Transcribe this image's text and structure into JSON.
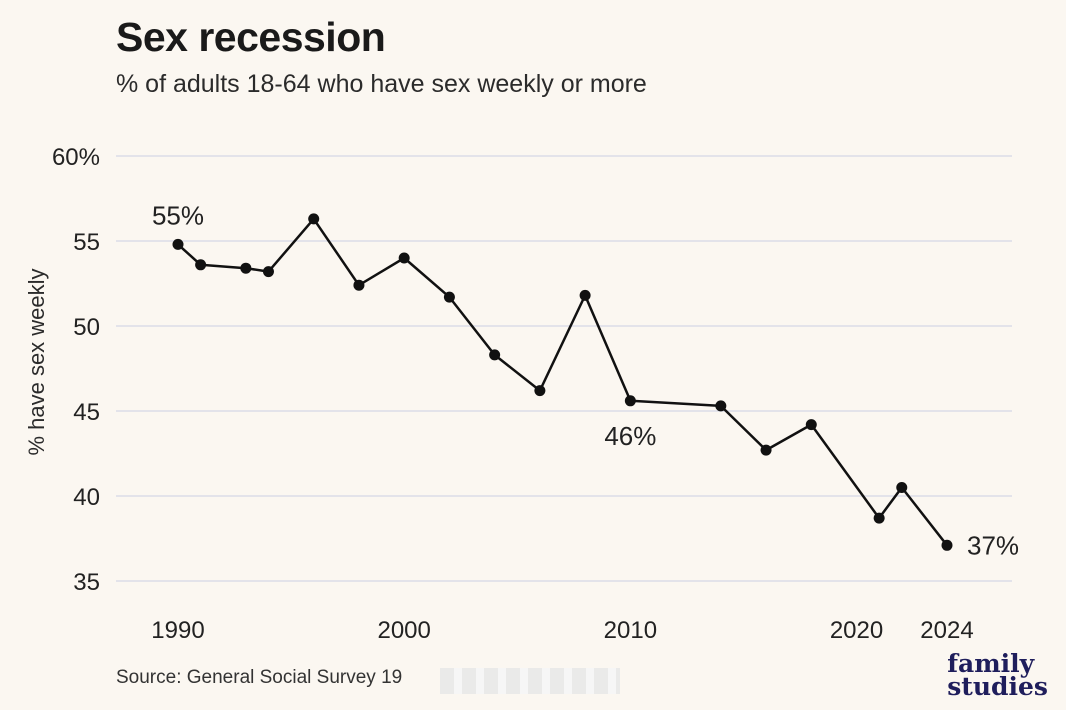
{
  "title": "Sex recession",
  "subtitle": "% of adults 18-64 who have sex weekly or more",
  "source": "Source: General Social Survey 19",
  "logo": {
    "line1": "family",
    "line2": "studies"
  },
  "colors": {
    "background": "#fbf7f1",
    "line": "#111111",
    "grid": "#e3e3ea",
    "logo": "#1f1e5c"
  },
  "chart_data": {
    "type": "line",
    "ylabel": "% have sex weekly",
    "xlabel": "",
    "ylim": [
      35,
      60
    ],
    "yticks": [
      {
        "value": 60,
        "label": "60%"
      },
      {
        "value": 55,
        "label": "55"
      },
      {
        "value": 50,
        "label": "50"
      },
      {
        "value": 45,
        "label": "45"
      },
      {
        "value": 40,
        "label": "40"
      },
      {
        "value": 35,
        "label": "35"
      }
    ],
    "xticks": [
      {
        "value": 1990,
        "label": "1990"
      },
      {
        "value": 2000,
        "label": "2000"
      },
      {
        "value": 2010,
        "label": "2010"
      },
      {
        "value": 2020,
        "label": "2020"
      },
      {
        "value": 2024,
        "label": "2024"
      }
    ],
    "grid": true,
    "series": [
      {
        "x": [
          1990,
          1991,
          1993,
          1994,
          1996,
          1998,
          2000,
          2002,
          2004,
          2006,
          2008,
          2010,
          2014,
          2016,
          2018,
          2021,
          2022,
          2024
        ],
        "y": [
          54.8,
          53.6,
          53.4,
          53.2,
          56.3,
          52.4,
          54.0,
          51.7,
          48.3,
          46.2,
          51.8,
          45.6,
          45.3,
          42.7,
          44.2,
          38.7,
          40.5,
          37.1
        ]
      }
    ],
    "annotations": [
      {
        "x": 1990,
        "y": 54.8,
        "text": "55%",
        "position": "above"
      },
      {
        "x": 2010,
        "y": 45.6,
        "text": "46%",
        "position": "below"
      },
      {
        "x": 2024,
        "y": 37.1,
        "text": "37%",
        "position": "right"
      }
    ]
  }
}
